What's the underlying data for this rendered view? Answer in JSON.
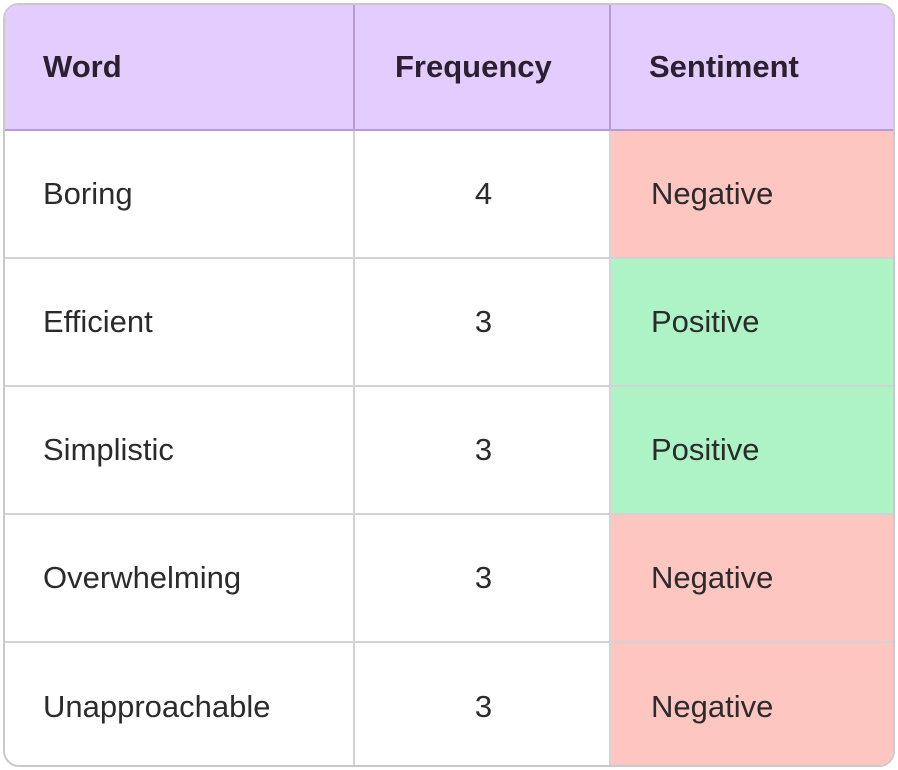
{
  "chart_data": {
    "type": "table",
    "columns": [
      "Word",
      "Frequency",
      "Sentiment"
    ],
    "rows": [
      {
        "word": "Boring",
        "frequency": "4",
        "sentiment": "Negative"
      },
      {
        "word": "Efficient",
        "frequency": "3",
        "sentiment": "Positive"
      },
      {
        "word": "Simplistic",
        "frequency": "3",
        "sentiment": "Positive"
      },
      {
        "word": "Overwhelming",
        "frequency": "3",
        "sentiment": "Negative"
      },
      {
        "word": "Unapproachable",
        "frequency": "3",
        "sentiment": "Negative"
      }
    ],
    "colors": {
      "header": "#e3ccfe",
      "negative": "#fdc6c1",
      "positive": "#aef3c6"
    }
  }
}
